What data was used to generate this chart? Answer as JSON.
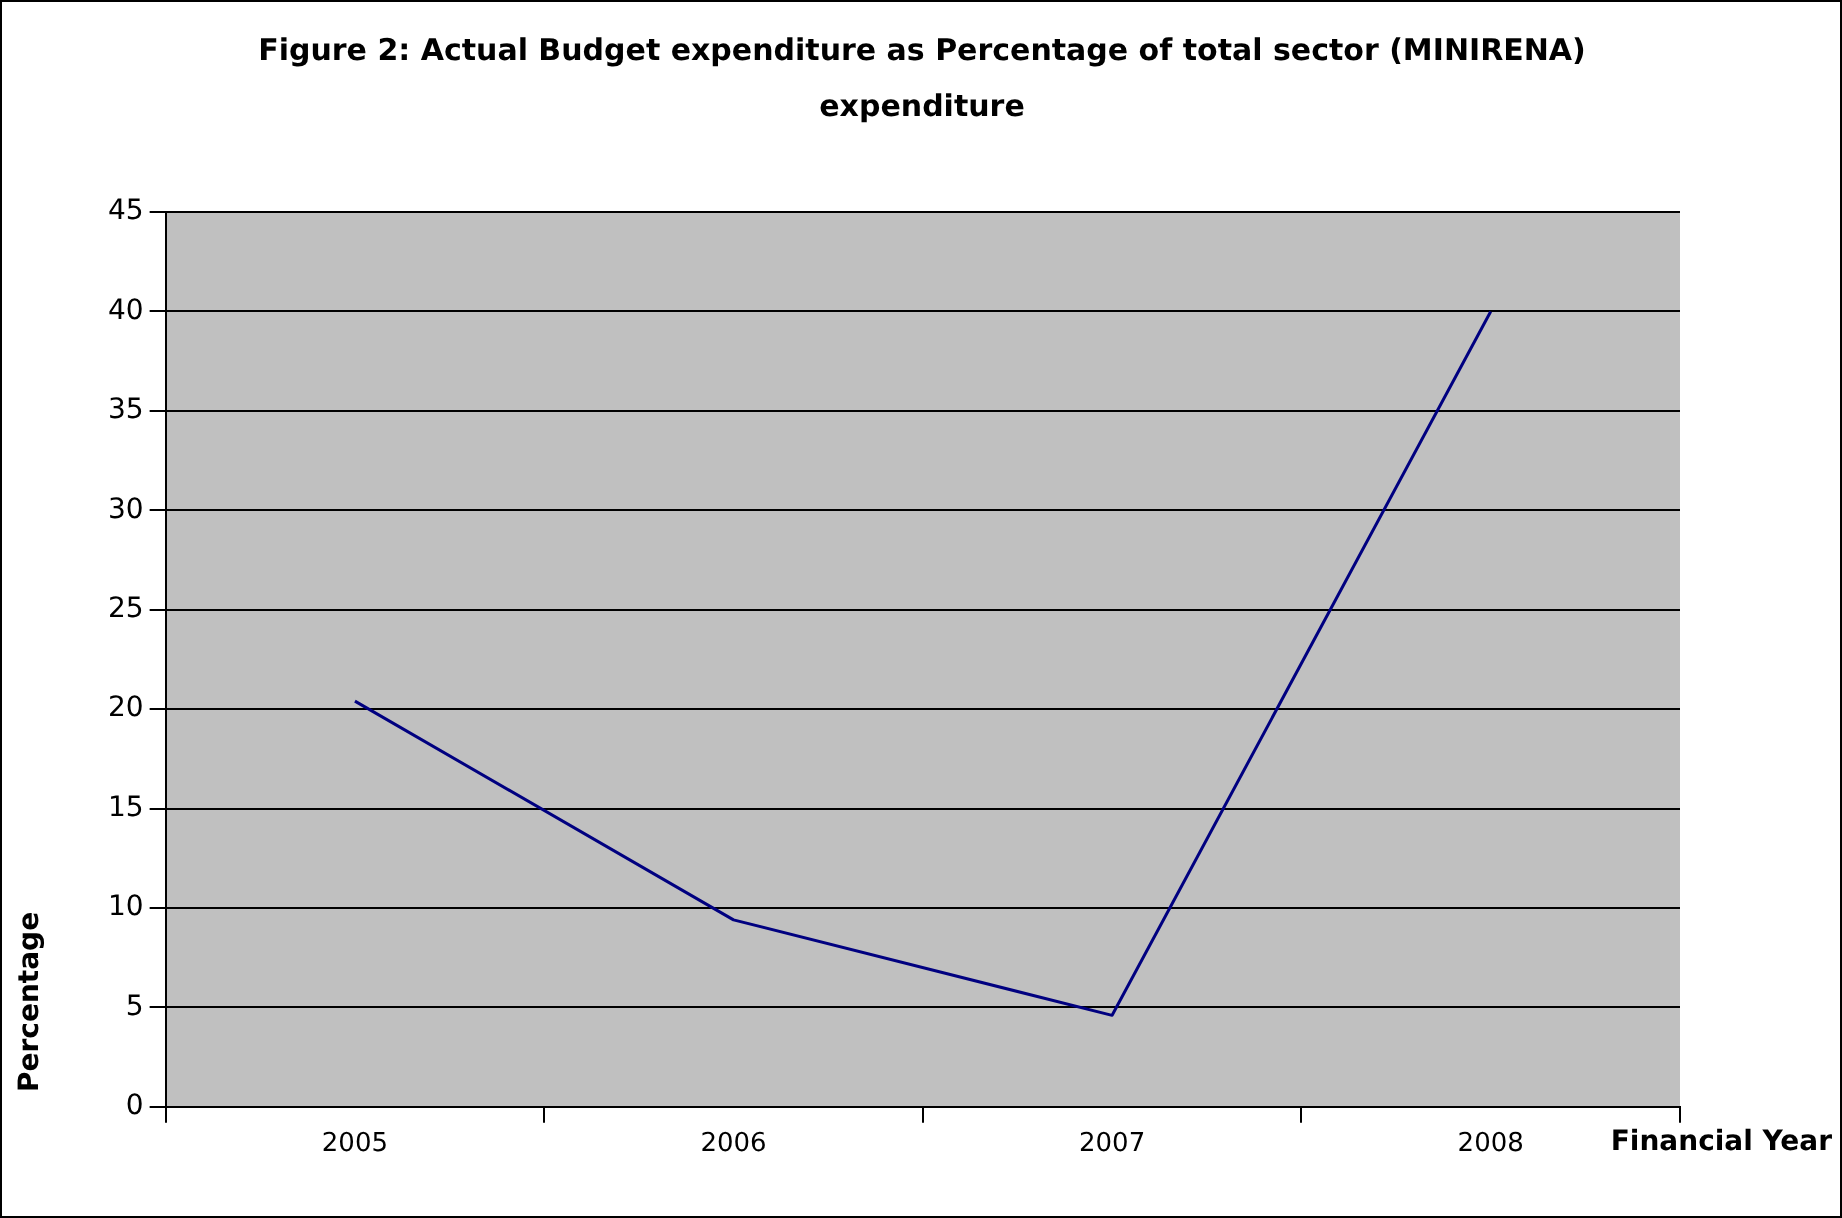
{
  "chart_data": {
    "type": "line",
    "title": "Figure 2: Actual Budget expenditure as Percentage of total sector (MINIRENA) expenditure",
    "xlabel": "Financial Year",
    "ylabel": "Percentage",
    "categories": [
      "2005",
      "2006",
      "2007",
      "2008"
    ],
    "series": [
      {
        "color": "#000080",
        "values": [
          20.4,
          9.4,
          4.6,
          40
        ]
      }
    ],
    "ylim": [
      0,
      45
    ],
    "yticks": [
      0,
      5,
      10,
      15,
      20,
      25,
      30,
      35,
      40,
      45
    ],
    "grid": "y",
    "legend": false,
    "marker": "none",
    "line_style": "solid"
  }
}
